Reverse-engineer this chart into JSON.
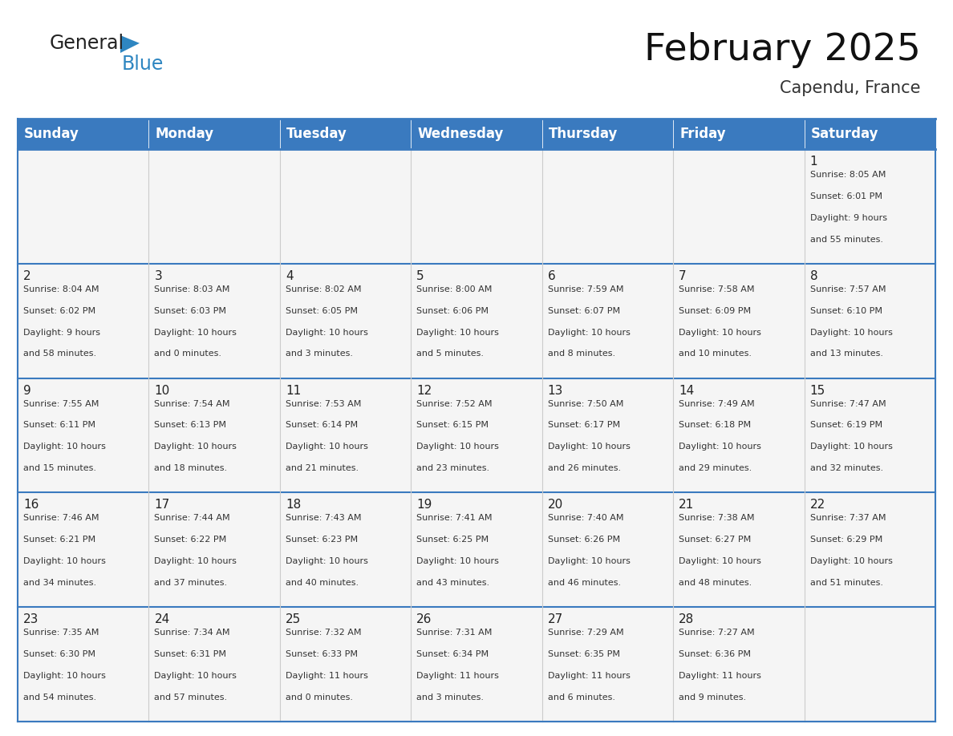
{
  "title": "February 2025",
  "subtitle": "Capendu, France",
  "header_color": "#3a7abf",
  "header_text_color": "#ffffff",
  "cell_bg_color": "#f5f5f5",
  "border_color": "#3a7abf",
  "row_border_color": "#3a7abf",
  "day_names": [
    "Sunday",
    "Monday",
    "Tuesday",
    "Wednesday",
    "Thursday",
    "Friday",
    "Saturday"
  ],
  "title_fontsize": 34,
  "subtitle_fontsize": 15,
  "day_number_fontsize": 11,
  "cell_text_fontsize": 8,
  "header_fontsize": 12,
  "logo_general_color": "#222222",
  "logo_blue_color": "#2e86c1",
  "logo_triangle_color": "#2e86c1",
  "days": [
    {
      "date": 1,
      "col": 6,
      "row": 0,
      "sunrise": "8:05 AM",
      "sunset": "6:01 PM",
      "daylight_hours": 9,
      "daylight_minutes": 55
    },
    {
      "date": 2,
      "col": 0,
      "row": 1,
      "sunrise": "8:04 AM",
      "sunset": "6:02 PM",
      "daylight_hours": 9,
      "daylight_minutes": 58
    },
    {
      "date": 3,
      "col": 1,
      "row": 1,
      "sunrise": "8:03 AM",
      "sunset": "6:03 PM",
      "daylight_hours": 10,
      "daylight_minutes": 0
    },
    {
      "date": 4,
      "col": 2,
      "row": 1,
      "sunrise": "8:02 AM",
      "sunset": "6:05 PM",
      "daylight_hours": 10,
      "daylight_minutes": 3
    },
    {
      "date": 5,
      "col": 3,
      "row": 1,
      "sunrise": "8:00 AM",
      "sunset": "6:06 PM",
      "daylight_hours": 10,
      "daylight_minutes": 5
    },
    {
      "date": 6,
      "col": 4,
      "row": 1,
      "sunrise": "7:59 AM",
      "sunset": "6:07 PM",
      "daylight_hours": 10,
      "daylight_minutes": 8
    },
    {
      "date": 7,
      "col": 5,
      "row": 1,
      "sunrise": "7:58 AM",
      "sunset": "6:09 PM",
      "daylight_hours": 10,
      "daylight_minutes": 10
    },
    {
      "date": 8,
      "col": 6,
      "row": 1,
      "sunrise": "7:57 AM",
      "sunset": "6:10 PM",
      "daylight_hours": 10,
      "daylight_minutes": 13
    },
    {
      "date": 9,
      "col": 0,
      "row": 2,
      "sunrise": "7:55 AM",
      "sunset": "6:11 PM",
      "daylight_hours": 10,
      "daylight_minutes": 15
    },
    {
      "date": 10,
      "col": 1,
      "row": 2,
      "sunrise": "7:54 AM",
      "sunset": "6:13 PM",
      "daylight_hours": 10,
      "daylight_minutes": 18
    },
    {
      "date": 11,
      "col": 2,
      "row": 2,
      "sunrise": "7:53 AM",
      "sunset": "6:14 PM",
      "daylight_hours": 10,
      "daylight_minutes": 21
    },
    {
      "date": 12,
      "col": 3,
      "row": 2,
      "sunrise": "7:52 AM",
      "sunset": "6:15 PM",
      "daylight_hours": 10,
      "daylight_minutes": 23
    },
    {
      "date": 13,
      "col": 4,
      "row": 2,
      "sunrise": "7:50 AM",
      "sunset": "6:17 PM",
      "daylight_hours": 10,
      "daylight_minutes": 26
    },
    {
      "date": 14,
      "col": 5,
      "row": 2,
      "sunrise": "7:49 AM",
      "sunset": "6:18 PM",
      "daylight_hours": 10,
      "daylight_minutes": 29
    },
    {
      "date": 15,
      "col": 6,
      "row": 2,
      "sunrise": "7:47 AM",
      "sunset": "6:19 PM",
      "daylight_hours": 10,
      "daylight_minutes": 32
    },
    {
      "date": 16,
      "col": 0,
      "row": 3,
      "sunrise": "7:46 AM",
      "sunset": "6:21 PM",
      "daylight_hours": 10,
      "daylight_minutes": 34
    },
    {
      "date": 17,
      "col": 1,
      "row": 3,
      "sunrise": "7:44 AM",
      "sunset": "6:22 PM",
      "daylight_hours": 10,
      "daylight_minutes": 37
    },
    {
      "date": 18,
      "col": 2,
      "row": 3,
      "sunrise": "7:43 AM",
      "sunset": "6:23 PM",
      "daylight_hours": 10,
      "daylight_minutes": 40
    },
    {
      "date": 19,
      "col": 3,
      "row": 3,
      "sunrise": "7:41 AM",
      "sunset": "6:25 PM",
      "daylight_hours": 10,
      "daylight_minutes": 43
    },
    {
      "date": 20,
      "col": 4,
      "row": 3,
      "sunrise": "7:40 AM",
      "sunset": "6:26 PM",
      "daylight_hours": 10,
      "daylight_minutes": 46
    },
    {
      "date": 21,
      "col": 5,
      "row": 3,
      "sunrise": "7:38 AM",
      "sunset": "6:27 PM",
      "daylight_hours": 10,
      "daylight_minutes": 48
    },
    {
      "date": 22,
      "col": 6,
      "row": 3,
      "sunrise": "7:37 AM",
      "sunset": "6:29 PM",
      "daylight_hours": 10,
      "daylight_minutes": 51
    },
    {
      "date": 23,
      "col": 0,
      "row": 4,
      "sunrise": "7:35 AM",
      "sunset": "6:30 PM",
      "daylight_hours": 10,
      "daylight_minutes": 54
    },
    {
      "date": 24,
      "col": 1,
      "row": 4,
      "sunrise": "7:34 AM",
      "sunset": "6:31 PM",
      "daylight_hours": 10,
      "daylight_minutes": 57
    },
    {
      "date": 25,
      "col": 2,
      "row": 4,
      "sunrise": "7:32 AM",
      "sunset": "6:33 PM",
      "daylight_hours": 11,
      "daylight_minutes": 0
    },
    {
      "date": 26,
      "col": 3,
      "row": 4,
      "sunrise": "7:31 AM",
      "sunset": "6:34 PM",
      "daylight_hours": 11,
      "daylight_minutes": 3
    },
    {
      "date": 27,
      "col": 4,
      "row": 4,
      "sunrise": "7:29 AM",
      "sunset": "6:35 PM",
      "daylight_hours": 11,
      "daylight_minutes": 6
    },
    {
      "date": 28,
      "col": 5,
      "row": 4,
      "sunrise": "7:27 AM",
      "sunset": "6:36 PM",
      "daylight_hours": 11,
      "daylight_minutes": 9
    }
  ]
}
